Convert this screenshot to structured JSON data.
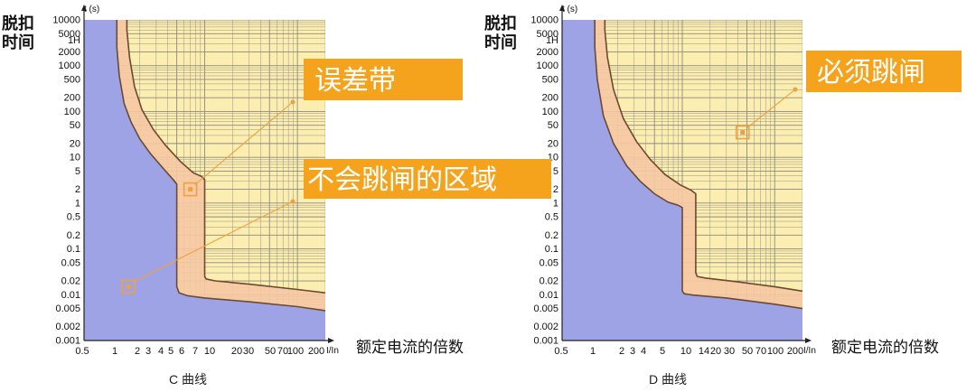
{
  "colors": {
    "no_trip": "#9ea3e6",
    "trip": "#fbeeb0",
    "tolerance": "#f6c8a4",
    "curve": "#6b4a2e",
    "callout": "#f5a31c",
    "callout_line": "#f0a040",
    "grid": "#8d8a80"
  },
  "chart_data": [
    {
      "type": "line",
      "title": "",
      "caption": "C 曲线",
      "ylabel": "脱扣时间",
      "y_unit": "t (s)",
      "xlabel": "额定电流的倍数",
      "x_unit": "I/In",
      "x_scale": "log",
      "y_scale": "log",
      "xlim": [
        0.5,
        200
      ],
      "ylim": [
        0.001,
        10000
      ],
      "x_ticks": [
        0.5,
        1,
        2,
        3,
        4,
        5,
        6,
        7,
        10,
        20,
        30,
        50,
        70,
        100,
        200
      ],
      "x_tick_labels": [
        "0.5",
        "1",
        "2",
        "3",
        "4",
        "5",
        "6",
        "7",
        "10",
        "20",
        "30",
        "50",
        "70",
        "100",
        "200"
      ],
      "y_ticks": [
        10000,
        5000,
        3600,
        2000,
        1000,
        500,
        200,
        100,
        50,
        20,
        10,
        5,
        2,
        1,
        0.5,
        0.2,
        0.1,
        0.05,
        0.02,
        0.01,
        0.005,
        0.002,
        0.001
      ],
      "y_tick_labels": [
        "10000",
        "5000",
        "1H",
        "2000",
        "1000",
        "500",
        "200",
        "100",
        "50",
        "20",
        "10",
        "5",
        "2",
        "1",
        "0.5",
        "0.2",
        "0.1",
        "0.05",
        "0.02",
        "0.01",
        "0.005",
        "0.002",
        "0.001"
      ],
      "series": [
        {
          "name": "",
          "x": [
            1.13,
            1.13,
            1.2,
            1.35,
            1.6,
            2.0,
            2.6,
            3.5,
            4.6,
            5,
            5,
            5.3,
            6.5,
            10,
            30,
            100,
            200
          ],
          "y": [
            10000,
            2500,
            600,
            150,
            60,
            25,
            12,
            6,
            3.2,
            2.6,
            0.015,
            0.011,
            0.0095,
            0.0085,
            0.007,
            0.0055,
            0.0045
          ]
        },
        {
          "name": "",
          "x": [
            1.45,
            1.45,
            1.55,
            1.75,
            2.1,
            2.8,
            3.8,
            5.5,
            7.5,
            9.3,
            10,
            10,
            10.4,
            13,
            30,
            100,
            200
          ],
          "y": [
            10000,
            6000,
            1500,
            350,
            110,
            40,
            18,
            8,
            4.6,
            3.8,
            3.2,
            0.025,
            0.022,
            0.02,
            0.017,
            0.013,
            0.011
          ]
        }
      ],
      "regions": [
        {
          "label": "误差带",
          "x": 7,
          "y": 2
        },
        {
          "label": "不会跳闸的区域",
          "x": 1.5,
          "y": 0.015
        }
      ]
    },
    {
      "type": "line",
      "title": "",
      "caption": "D 曲线",
      "ylabel": "脱扣时间",
      "y_unit": "t (s)",
      "xlabel": "额定电流的倍数",
      "x_unit": "I/In",
      "x_scale": "log",
      "y_scale": "log",
      "xlim": [
        0.5,
        200
      ],
      "ylim": [
        0.001,
        10000
      ],
      "x_ticks": [
        0.5,
        1,
        2,
        3,
        4,
        5,
        10,
        14,
        20,
        30,
        50,
        70,
        100,
        200
      ],
      "x_tick_labels": [
        "0.5",
        "1",
        "2",
        "3",
        "4",
        "5",
        "10",
        "14",
        "20",
        "30",
        "50",
        "70",
        "100",
        "200"
      ],
      "y_ticks": [
        10000,
        5000,
        3600,
        2000,
        1000,
        500,
        200,
        100,
        50,
        20,
        10,
        5,
        2,
        1,
        0.5,
        0.2,
        0.1,
        0.05,
        0.02,
        0.01,
        0.005,
        0.002,
        0.001
      ],
      "y_tick_labels": [
        "10000",
        "5000",
        "1H",
        "2000",
        "1000",
        "500",
        "200",
        "100",
        "50",
        "20",
        "10",
        "5",
        "2",
        "1",
        "0.5",
        "0.2",
        "0.1",
        "0.05",
        "0.02",
        "0.01",
        "0.005",
        "0.002",
        "0.001"
      ],
      "series": [
        {
          "name": "",
          "x": [
            1.13,
            1.13,
            1.2,
            1.4,
            1.8,
            2.5,
            3.5,
            5,
            7,
            9,
            10,
            10,
            10.5,
            13,
            30,
            100,
            200
          ],
          "y": [
            10000,
            2500,
            500,
            80,
            20,
            6.5,
            3,
            1.6,
            1.05,
            0.9,
            0.8,
            0.012,
            0.0105,
            0.0098,
            0.0085,
            0.0062,
            0.005
          ]
        },
        {
          "name": "",
          "x": [
            1.45,
            1.45,
            1.55,
            1.8,
            2.3,
            3.2,
            4.5,
            6.5,
            9.5,
            12.5,
            14,
            14,
            14.5,
            18,
            40,
            100,
            200
          ],
          "y": [
            10000,
            6000,
            1500,
            300,
            70,
            22,
            9,
            4.2,
            2.5,
            1.9,
            1.6,
            0.03,
            0.025,
            0.023,
            0.019,
            0.015,
            0.012
          ]
        }
      ],
      "regions": [
        {
          "label": "必须跳闸",
          "x": 45,
          "y": 35
        }
      ]
    }
  ]
}
